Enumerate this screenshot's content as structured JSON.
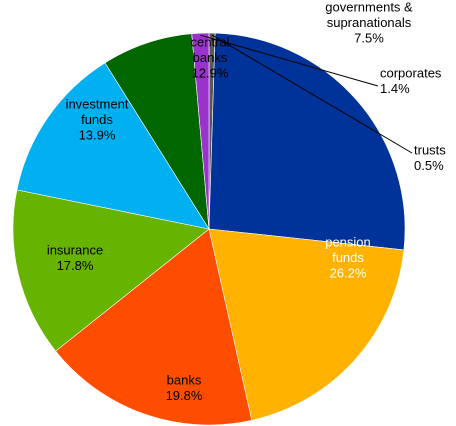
{
  "chart_data": {
    "type": "pie",
    "start_angle_deg": 0,
    "direction": "clockwise",
    "slices": [
      {
        "name": "trusts",
        "value": 0.5,
        "label": [
          "trusts",
          "0.5%"
        ],
        "color": "#595959",
        "label_placement": "outside-leader",
        "text_color": "#000000"
      },
      {
        "name": "pension funds",
        "value": 26.2,
        "label": [
          "pension",
          "funds",
          "26.2%"
        ],
        "color": "#003399",
        "label_placement": "inside",
        "text_color": "#ffffff"
      },
      {
        "name": "banks",
        "value": 19.8,
        "label": [
          "banks",
          "19.8%"
        ],
        "color": "#ffb300",
        "label_placement": "inside",
        "text_color": "#000000"
      },
      {
        "name": "insurance",
        "value": 17.8,
        "label": [
          "insurance",
          "17.8%"
        ],
        "color": "#ff4d00",
        "label_placement": "inside",
        "text_color": "#000000"
      },
      {
        "name": "investment funds",
        "value": 13.9,
        "label": [
          "investment",
          "funds",
          "13.9%"
        ],
        "color": "#66b300",
        "label_placement": "inside",
        "text_color": "#000000"
      },
      {
        "name": "central banks",
        "value": 12.9,
        "label": [
          "central",
          "banks",
          "12.9%"
        ],
        "color": "#00b0f0",
        "label_placement": "inside",
        "text_color": "#000000"
      },
      {
        "name": "governments & supranationals",
        "value": 7.5,
        "label": [
          "governments &",
          "supranationals",
          "7.5%"
        ],
        "color": "#006600",
        "label_placement": "outside",
        "text_color": "#000000"
      },
      {
        "name": "corporates",
        "value": 1.4,
        "label": [
          "corporates",
          "1.4%"
        ],
        "color": "#9933cc",
        "label_placement": "outside-leader",
        "text_color": "#000000"
      }
    ]
  }
}
